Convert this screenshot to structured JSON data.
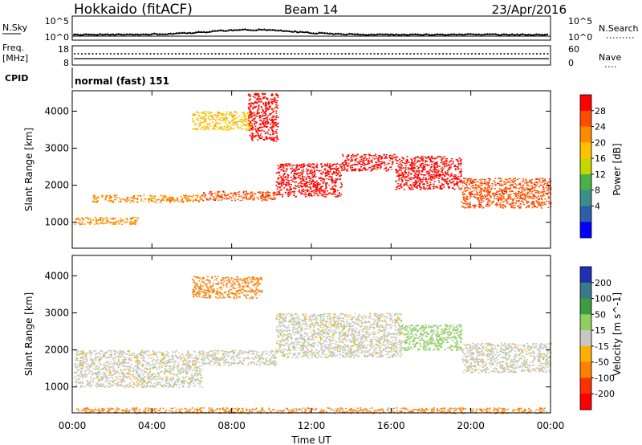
{
  "header": {
    "station": "Hokkaido (fitACF)",
    "beam": "Beam 14",
    "date": "23/Apr/2016"
  },
  "noise_panel": {
    "left_label": "N.Sky",
    "left_ticks": [
      "10^5",
      "10^0"
    ],
    "right_ticks": [
      "10^5",
      "10^0"
    ],
    "right_label": "N.Search"
  },
  "freq_panel": {
    "left_label_line1": "Freq.",
    "left_label_line2": "[MHz]",
    "left_ticks": [
      "18",
      "8"
    ],
    "right_ticks": [
      "60",
      "0"
    ],
    "right_label": "Nave"
  },
  "cpid_panel": {
    "label": "CPID",
    "value": "normal (fast) 151"
  },
  "chart_data": [
    {
      "type": "heatmap",
      "name": "power",
      "ylabel": "Slant Range [km]",
      "y_ticks": [
        "4000",
        "3000",
        "2000",
        "1000"
      ],
      "ylim": [
        300,
        4550
      ],
      "colorbar": {
        "label": "Power [dB]",
        "ticks": [
          "28",
          "24",
          "20",
          "16",
          "12",
          "8",
          "4"
        ],
        "colors": [
          "#ff0000",
          "#ff4d00",
          "#ff8a00",
          "#ffc200",
          "#c8d600",
          "#4ab04a",
          "#3c8e8a",
          "#2d5fa8",
          "#0000ff"
        ]
      },
      "bands": [
        {
          "time_hours": [
            0.1,
            3.3
          ],
          "range_km": [
            950,
            1150
          ],
          "level": 20
        },
        {
          "time_hours": [
            1.0,
            6.5
          ],
          "range_km": [
            1550,
            1750
          ],
          "level": 20
        },
        {
          "time_hours": [
            6.5,
            10.2
          ],
          "range_km": [
            1600,
            1850
          ],
          "level": 24
        },
        {
          "time_hours": [
            10.2,
            13.5
          ],
          "range_km": [
            1700,
            2600
          ],
          "level": 28
        },
        {
          "time_hours": [
            13.5,
            16.2
          ],
          "range_km": [
            2400,
            2850
          ],
          "level": 28
        },
        {
          "time_hours": [
            16.2,
            19.5
          ],
          "range_km": [
            1900,
            2800
          ],
          "level": 28
        },
        {
          "time_hours": [
            19.5,
            24.0
          ],
          "range_km": [
            1400,
            2200
          ],
          "level": 24
        },
        {
          "time_hours": [
            6.0,
            9.0
          ],
          "range_km": [
            3500,
            4000
          ],
          "level": 16
        },
        {
          "time_hours": [
            8.8,
            10.3
          ],
          "range_km": [
            3200,
            4500
          ],
          "level": 28
        }
      ]
    },
    {
      "type": "heatmap",
      "name": "velocity",
      "ylabel": "Slant Range [km]",
      "xlabel": "Time UT",
      "x_ticks": [
        "00:00",
        "04:00",
        "08:00",
        "12:00",
        "16:00",
        "20:00",
        "00:00"
      ],
      "xlim": [
        0,
        24
      ],
      "y_ticks": [
        "4000",
        "3000",
        "2000",
        "1000"
      ],
      "ylim": [
        300,
        4550
      ],
      "colorbar": {
        "label": "Velocity [m s^-1]",
        "ticks": [
          "200",
          "100",
          "50",
          "15",
          "-15",
          "-50",
          "-100",
          "-200"
        ],
        "colors": [
          "#2030b0",
          "#3a7a8a",
          "#3d9a3d",
          "#8ed060",
          "#c8c8c0",
          "#ffb000",
          "#ff8000",
          "#ff3000",
          "#ff0000"
        ]
      },
      "bands": [
        {
          "time_hours": [
            0.1,
            6.5
          ],
          "range_km": [
            1000,
            2000
          ],
          "level": 0
        },
        {
          "time_hours": [
            6.5,
            10.2
          ],
          "range_km": [
            1600,
            2000
          ],
          "level": 0
        },
        {
          "time_hours": [
            10.2,
            16.5
          ],
          "range_km": [
            1800,
            3000
          ],
          "level": 0
        },
        {
          "time_hours": [
            16.5,
            19.5
          ],
          "range_km": [
            2000,
            2700
          ],
          "level": 30
        },
        {
          "time_hours": [
            19.5,
            24.0
          ],
          "range_km": [
            1400,
            2200
          ],
          "level": 0
        },
        {
          "time_hours": [
            6.0,
            9.5
          ],
          "range_km": [
            3400,
            4000
          ],
          "level": -60
        },
        {
          "time_hours": [
            0.2,
            23.8
          ],
          "range_km": [
            300,
            450
          ],
          "level": -60
        }
      ]
    }
  ]
}
